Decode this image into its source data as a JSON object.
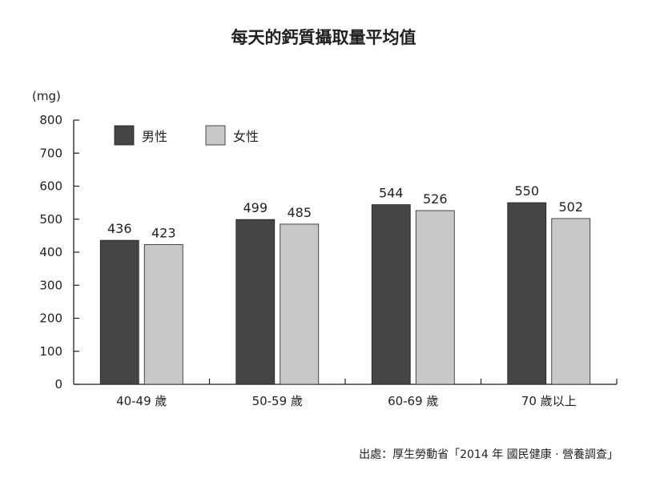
{
  "chart_data": {
    "type": "bar",
    "title": "每天的鈣質攝取量平均值",
    "ylabel": "(mg)",
    "xlabel": "",
    "ylim": [
      0,
      800
    ],
    "yticks": [
      0,
      100,
      200,
      300,
      400,
      500,
      600,
      700,
      800
    ],
    "categories": [
      "40-49 歲",
      "50-59 歲",
      "60-69 歲",
      "70 歲以上"
    ],
    "series": [
      {
        "name": "男性",
        "values": [
          436,
          499,
          544,
          550
        ],
        "color": "#474445"
      },
      {
        "name": "女性",
        "values": [
          423,
          485,
          526,
          502
        ],
        "color": "#c8c8c8"
      }
    ],
    "legend_position": "top-left",
    "grid": false,
    "source": "出處：厚生勞動省「2014 年 國民健康 · 營養調查」"
  }
}
